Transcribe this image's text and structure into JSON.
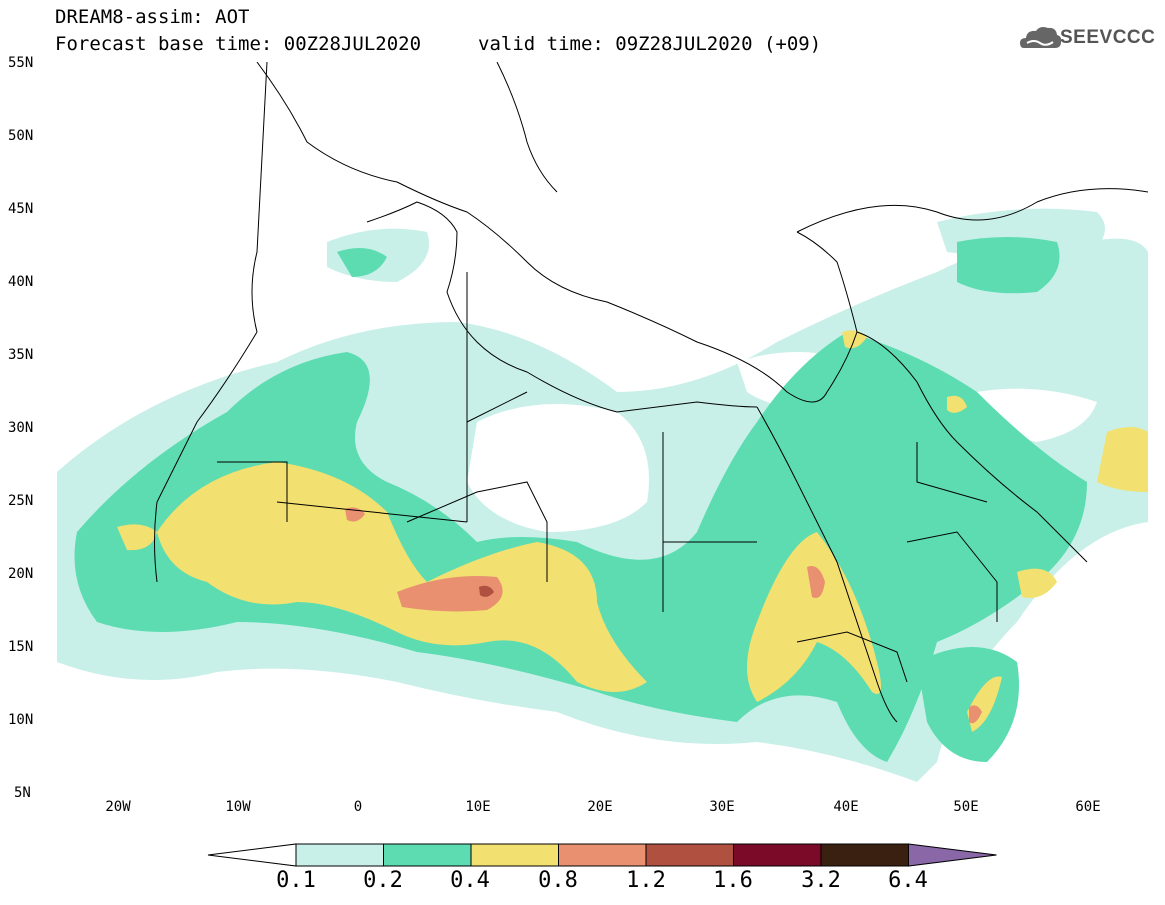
{
  "header": {
    "title_line1": "DREAM8-assim: AOT",
    "title_line2": "Forecast base time: 00Z28JUL2020",
    "valid_time": "valid time: 09Z28JUL2020 (+09)",
    "logo_text": "SEEVCCC"
  },
  "map": {
    "lat_labels": [
      "55N",
      "50N",
      "45N",
      "40N",
      "35N",
      "30N",
      "25N",
      "20N",
      "15N",
      "10N",
      "5N"
    ],
    "lon_labels": [
      "20W",
      "10W",
      "0",
      "10E",
      "20E",
      "30E",
      "40E",
      "50E",
      "60E"
    ],
    "region": "Mediterranean, North Africa, Middle East",
    "field": "Aerosol Optical Thickness"
  },
  "colorbar": {
    "levels": [
      "0.1",
      "0.2",
      "0.4",
      "0.8",
      "1.2",
      "1.6",
      "3.2",
      "6.4"
    ],
    "colors": [
      "#c8f0e8",
      "#5cdcb0",
      "#f2e070",
      "#e89070",
      "#b05040",
      "#7a0a28",
      "#3a2010",
      "#8a68a8"
    ],
    "under_color": "#ffffff",
    "over_color": "#8a68a8"
  }
}
